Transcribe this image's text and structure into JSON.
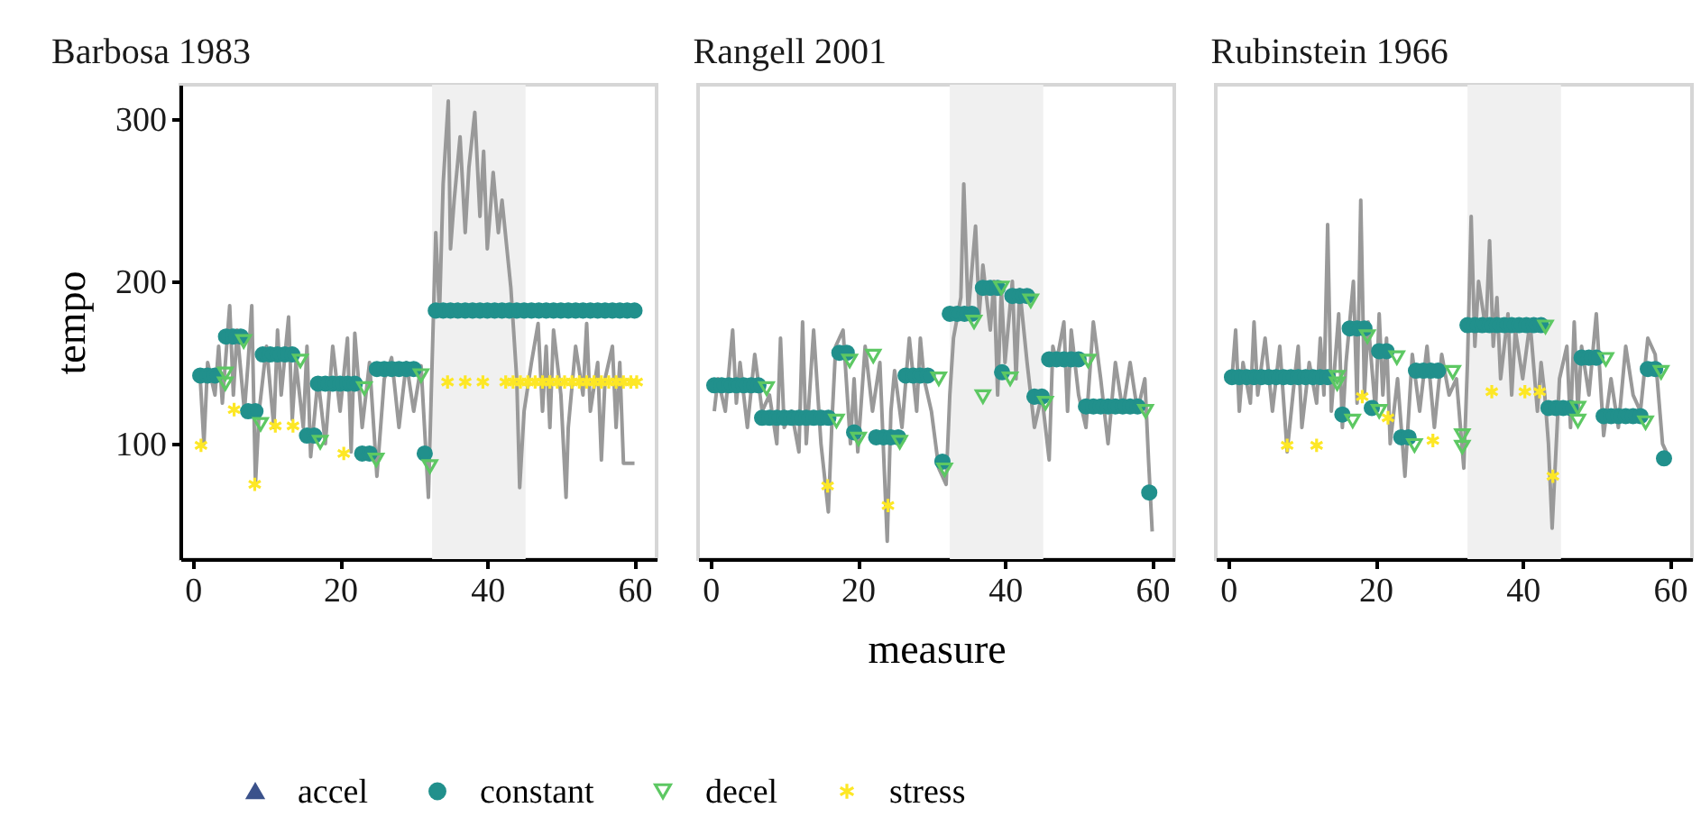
{
  "chart_data": [
    {
      "type": "scatter",
      "title": "Barbosa 1983",
      "ylabel": "tempo",
      "xlim": [
        -1.7,
        63
      ],
      "xticks": [
        0,
        20,
        40,
        60
      ],
      "ylim": [
        29,
        321
      ],
      "yticks": [
        100,
        200,
        300
      ],
      "legend": "bottom",
      "bands": [
        {
          "axis": "x",
          "from": 32.5,
          "to": 45.2,
          "color": "#f0f0f0"
        }
      ],
      "series": [
        {
          "type": "line",
          "color": "#999999",
          "x": [
            1,
            1.5,
            2,
            3,
            3.5,
            4,
            5,
            5.5,
            6,
            7,
            7.5,
            8,
            8.5,
            9,
            10,
            11,
            11.5,
            12,
            13,
            13.5,
            14,
            15,
            15.5,
            16,
            17,
            18,
            19,
            20,
            21,
            21.5,
            22,
            23,
            24,
            25,
            26,
            27,
            28,
            29,
            30,
            31,
            32,
            32.5,
            33,
            33.5,
            34,
            34.7,
            35,
            35.5,
            36.3,
            37,
            37.5,
            38.3,
            39,
            39.5,
            40,
            40.8,
            41.5,
            42,
            43.2,
            44,
            44.4,
            45,
            46,
            46.9,
            47.5,
            48,
            48.5,
            49,
            50,
            50.7,
            51,
            52,
            53,
            53.5,
            54,
            55,
            55.5,
            56,
            57,
            57.5,
            58,
            58.5,
            60
          ],
          "values": [
            140,
            100,
            150,
            130,
            160,
            125,
            185,
            130,
            170,
            120,
            150,
            185,
            75,
            120,
            160,
            110,
            170,
            130,
            178,
            115,
            150,
            110,
            160,
            92,
            140,
            100,
            160,
            120,
            165,
            95,
            168,
            110,
            150,
            80,
            140,
            153,
            110,
            150,
            120,
            148,
            67,
            150,
            230,
            180,
            260,
            311,
            220,
            250,
            289,
            230,
            270,
            304,
            240,
            280,
            220,
            267,
            230,
            250,
            196,
            140,
            73,
            120,
            150,
            174,
            120,
            160,
            110,
            170,
            130,
            67,
            110,
            160,
            130,
            174,
            120,
            150,
            90,
            140,
            160,
            110,
            150,
            88,
            88
          ]
        },
        {
          "name": "accel",
          "color": "#3b528b",
          "marker": "triangle"
        },
        {
          "name": "constant",
          "color": "#21908c",
          "marker": "circle",
          "x": [
            1,
            2,
            3,
            4.5,
            5.5,
            6.5,
            7.5,
            8.5,
            9.5,
            10.5,
            11.5,
            12.5,
            13.5,
            15.5,
            16.5,
            17,
            18,
            19,
            20,
            21,
            22,
            23,
            24,
            25,
            26,
            27,
            28,
            29,
            30,
            31.5,
            33,
            34,
            35,
            36,
            37,
            38,
            39,
            40,
            41,
            42,
            43,
            44,
            45,
            46,
            47,
            48,
            49,
            50,
            51,
            52,
            53,
            54,
            55,
            56,
            57,
            58,
            59,
            60
          ],
          "values": [
            142,
            142,
            142,
            166,
            166,
            166,
            120,
            120,
            155,
            155,
            155,
            155,
            155,
            105,
            105,
            137,
            137,
            137,
            137,
            137,
            137,
            94,
            94,
            146,
            146,
            146,
            146,
            146,
            146,
            94,
            182,
            182,
            182,
            182,
            182,
            182,
            182,
            182,
            182,
            182,
            182,
            182,
            182,
            182,
            182,
            182,
            182,
            182,
            182,
            182,
            182,
            182,
            182,
            182,
            182,
            182,
            182,
            182
          ]
        },
        {
          "name": "decel",
          "color": "#5dc863",
          "marker": "triangle",
          "x": [
            4.4,
            4.4,
            6.9,
            9.2,
            14.6,
            17.3,
            23.3,
            24.9,
            31,
            32.2
          ],
          "values": [
            143,
            137,
            163,
            112,
            151,
            101,
            134,
            90,
            142,
            86
          ]
        },
        {
          "name": "stress",
          "color": "#fde725",
          "marker": "cross",
          "x": [
            1.1,
            5.6,
            8.4,
            11.2,
            13.6,
            20.5,
            34.6,
            37,
            39.4,
            42.5,
            43.5,
            44.5,
            45.5,
            46.5,
            47.5,
            48.5,
            49.5,
            50.5,
            51.5,
            52.5,
            53.5,
            54.5,
            55.5,
            56.5,
            57.5,
            58.5,
            59.5,
            60.3
          ],
          "values": [
            99,
            121,
            75,
            111,
            111,
            94,
            138,
            138,
            138,
            138,
            138,
            138,
            138,
            138,
            138,
            138,
            138,
            138,
            138,
            138,
            138,
            138,
            138,
            138,
            138,
            138,
            138,
            138
          ]
        }
      ]
    },
    {
      "type": "scatter",
      "title": "Rangell 2001",
      "xlabel": "measure",
      "xlim": [
        -1.7,
        63
      ],
      "xticks": [
        0,
        20,
        40,
        60
      ],
      "ylim": [
        29,
        321
      ],
      "yticks": [
        100,
        200,
        300
      ],
      "tick_labels": "x",
      "bands": [
        {
          "axis": "x",
          "from": 32.5,
          "to": 45.2,
          "color": "#f0f0f0"
        }
      ],
      "series": [
        {
          "type": "line",
          "color": "#999999",
          "x": [
            0.5,
            1,
            2,
            3,
            3.5,
            4,
            5,
            6,
            7,
            8,
            9,
            9.5,
            10,
            11,
            12,
            12.5,
            13,
            14,
            15,
            16,
            16.5,
            17,
            18,
            19,
            19.5,
            20,
            21,
            22,
            23,
            24,
            24.5,
            25,
            26,
            27,
            28,
            28.5,
            29,
            30,
            31,
            32,
            32.5,
            33,
            34,
            34.4,
            35,
            36,
            36.5,
            37,
            38,
            38.5,
            39,
            39.5,
            40,
            41,
            41.5,
            42,
            43,
            44,
            45,
            46,
            46.5,
            47,
            48,
            48.5,
            49,
            50,
            51,
            52,
            53,
            54,
            55,
            56,
            57,
            58,
            59,
            59.5,
            60
          ],
          "values": [
            120,
            140,
            120,
            170,
            125,
            150,
            110,
            155,
            120,
            130,
            100,
            165,
            110,
            120,
            95,
            175,
            100,
            170,
            100,
            58,
            115,
            160,
            170,
            100,
            140,
            95,
            160,
            120,
            150,
            40,
            120,
            145,
            110,
            165,
            120,
            165,
            140,
            120,
            85,
            75,
            130,
            165,
            190,
            260,
            180,
            234,
            180,
            210,
            170,
            200,
            130,
            195,
            150,
            200,
            140,
            195,
            150,
            110,
            130,
            90,
            160,
            150,
            175,
            120,
            170,
            130,
            110,
            175,
            140,
            100,
            150,
            120,
            150,
            120,
            140,
            90,
            46
          ]
        },
        {
          "name": "constant",
          "color": "#21908c",
          "marker": "circle",
          "x": [
            0.5,
            1.5,
            2.5,
            3.5,
            4.5,
            5.5,
            6.5,
            7,
            8,
            9,
            10,
            11,
            12,
            13,
            14,
            15,
            16,
            17.5,
            18.5,
            19.5,
            22.5,
            23.5,
            24.5,
            25.5,
            26.5,
            27.5,
            28.5,
            29.5,
            31.5,
            32.5,
            33.5,
            34.5,
            35.5,
            37,
            38,
            39,
            39.6,
            41,
            42,
            43,
            44,
            45,
            46,
            47,
            48,
            49,
            50,
            51,
            52,
            53,
            54,
            55,
            56,
            57,
            58,
            59.6
          ],
          "values": [
            136,
            136,
            136,
            136,
            136,
            136,
            136,
            116,
            116,
            116,
            116,
            116,
            116,
            116,
            116,
            116,
            116,
            156,
            156,
            107,
            104,
            104,
            104,
            104,
            142,
            142,
            142,
            142,
            89,
            180,
            180,
            180,
            180,
            196,
            196,
            196,
            144,
            191,
            191,
            191,
            129,
            129,
            152,
            152,
            152,
            152,
            152,
            123,
            123,
            123,
            123,
            123,
            123,
            123,
            123,
            70
          ]
        },
        {
          "name": "decel",
          "color": "#5dc863",
          "marker": "triangle",
          "x": [
            7.6,
            17.1,
            18.9,
            20.1,
            22.1,
            25.7,
            31,
            31.8,
            35.8,
            37,
            39.5,
            40.7,
            43.5,
            45.5,
            51.3,
            59.1
          ],
          "values": [
            134,
            114,
            151,
            103,
            154,
            101,
            140,
            84,
            175,
            129,
            196,
            140,
            188,
            125,
            151,
            120
          ]
        },
        {
          "name": "stress",
          "color": "#fde725",
          "marker": "cross",
          "x": [
            15.9,
            24.1
          ],
          "values": [
            74,
            62
          ]
        }
      ]
    },
    {
      "type": "scatter",
      "title": "Rubinstein 1966",
      "xlim": [
        -1.7,
        63
      ],
      "xticks": [
        0,
        20,
        40,
        60
      ],
      "ylim": [
        29,
        321
      ],
      "yticks": [
        100,
        200,
        300
      ],
      "tick_labels": "x",
      "bands": [
        {
          "axis": "x",
          "from": 32.5,
          "to": 45.2,
          "color": "#f0f0f0"
        }
      ],
      "series": [
        {
          "type": "line",
          "color": "#999999",
          "x": [
            0.5,
            1,
            1.5,
            2,
            3,
            3.5,
            4,
            5,
            6,
            7,
            8,
            9,
            9.5,
            10,
            11,
            12,
            12.5,
            13,
            13.5,
            14,
            15,
            15.5,
            16,
            17,
            17.5,
            18,
            18.5,
            19,
            20,
            20.5,
            21,
            21.5,
            22,
            23,
            24,
            25,
            26,
            27,
            28,
            29,
            30,
            31,
            32,
            32.5,
            33,
            33.5,
            34,
            35,
            35.5,
            36,
            36.5,
            37,
            38,
            38.5,
            39,
            40,
            41,
            42,
            42.5,
            43,
            43.5,
            44,
            45,
            46,
            46.5,
            47,
            47.5,
            48,
            49,
            50,
            51,
            52,
            53,
            54,
            55,
            56,
            57,
            58,
            59,
            60
          ],
          "values": [
            140,
            170,
            120,
            150,
            125,
            175,
            130,
            165,
            120,
            160,
            95,
            140,
            160,
            110,
            150,
            125,
            165,
            130,
            235,
            120,
            180,
            110,
            150,
            200,
            125,
            250,
            130,
            175,
            120,
            180,
            130,
            165,
            100,
            140,
            80,
            155,
            120,
            160,
            110,
            155,
            130,
            140,
            85,
            150,
            240,
            160,
            200,
            170,
            225,
            160,
            190,
            140,
            180,
            130,
            170,
            140,
            175,
            120,
            150,
            130,
            100,
            48,
            140,
            160,
            110,
            175,
            120,
            160,
            130,
            180,
            105,
            140,
            110,
            160,
            130,
            120,
            165,
            155,
            100,
            90
          ]
        },
        {
          "name": "constant",
          "color": "#21908c",
          "marker": "circle",
          "x": [
            0.5,
            1.5,
            2.5,
            3.5,
            4.5,
            5.5,
            6.5,
            7.5,
            8.5,
            9.5,
            10.5,
            11.5,
            12.5,
            13.5,
            15.5,
            16.5,
            17.5,
            18.5,
            19.5,
            20.5,
            21.5,
            23.5,
            24.5,
            25.5,
            26.5,
            27.5,
            28.5,
            32.5,
            33.5,
            34.5,
            35.5,
            36.5,
            37.5,
            38.5,
            39.5,
            40.5,
            41.5,
            42.5,
            43.5,
            44.5,
            45.5,
            46.5,
            48,
            49,
            50,
            51,
            52,
            53,
            54,
            55,
            56,
            57,
            58,
            59.2
          ],
          "values": [
            141,
            141,
            141,
            141,
            141,
            141,
            141,
            141,
            141,
            141,
            141,
            141,
            141,
            141,
            118,
            171,
            171,
            171,
            122,
            157,
            157,
            104,
            104,
            145,
            145,
            145,
            145,
            173,
            173,
            173,
            173,
            173,
            173,
            173,
            173,
            173,
            173,
            173,
            122,
            122,
            122,
            122,
            153,
            153,
            153,
            117,
            117,
            117,
            117,
            117,
            117,
            146,
            146,
            91
          ]
        },
        {
          "name": "decel",
          "color": "#5dc863",
          "marker": "triangle",
          "x": [
            14.8,
            14.8,
            16.9,
            18.9,
            20.5,
            22.9,
            25.3,
            30.5,
            31.8,
            31.8,
            43.1,
            47.5,
            47.5,
            51.3,
            56.7,
            58.8
          ],
          "values": [
            141,
            137,
            114,
            166,
            120,
            153,
            99,
            144,
            105,
            98,
            172,
            122,
            114,
            152,
            113,
            144
          ]
        },
        {
          "name": "stress",
          "color": "#fde725",
          "marker": "cross",
          "x": [
            8,
            12,
            18.2,
            21.7,
            27.8,
            35.8,
            40.3,
            42.3,
            44.1
          ],
          "values": [
            99,
            99,
            129,
            116,
            102,
            132,
            132,
            132,
            80
          ]
        }
      ]
    }
  ]
}
